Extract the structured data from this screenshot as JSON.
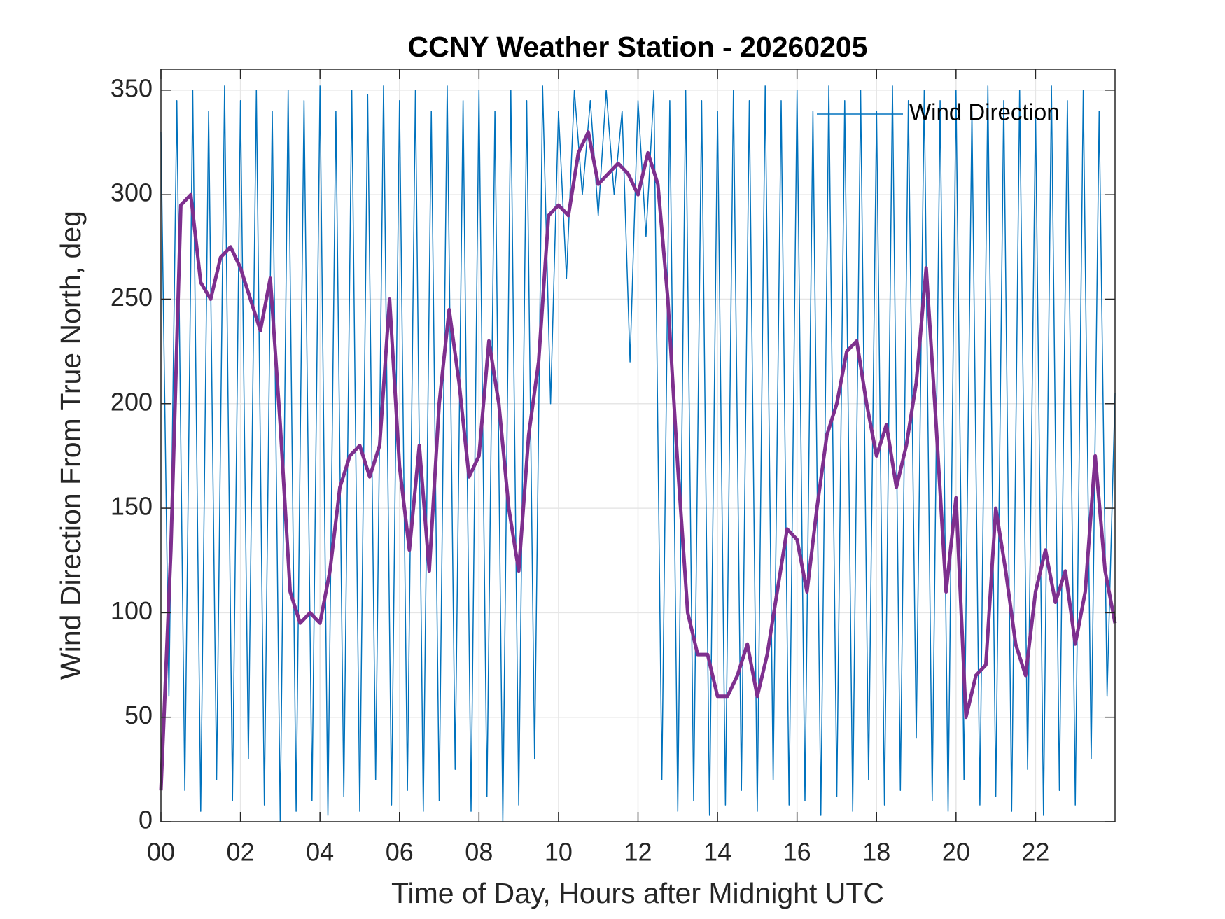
{
  "chart_data": {
    "type": "line",
    "title": "CCNY Weather Station - 20260205",
    "xlabel": "Time of Day, Hours after Midnight UTC",
    "ylabel": "Wind Direction From True North, deg",
    "xlim": [
      0,
      24
    ],
    "ylim": [
      0,
      360
    ],
    "xticks": [
      {
        "value": 0,
        "label": "00"
      },
      {
        "value": 2,
        "label": "02"
      },
      {
        "value": 4,
        "label": "04"
      },
      {
        "value": 6,
        "label": "06"
      },
      {
        "value": 8,
        "label": "08"
      },
      10,
      12,
      14,
      16,
      18,
      20,
      22
    ],
    "yticks": [
      0,
      50,
      100,
      150,
      200,
      250,
      300,
      350
    ],
    "grid": true,
    "legend": "northeast",
    "series": [
      {
        "name": "Wind Direction",
        "color": "#0072bd",
        "width": 1.5,
        "x": [
          0,
          0.2,
          0.4,
          0.6,
          0.8,
          1,
          1.2,
          1.4,
          1.6,
          1.8,
          2,
          2.2,
          2.4,
          2.6,
          2.8,
          3,
          3.2,
          3.4,
          3.6,
          3.8,
          4,
          4.2,
          4.4,
          4.6,
          4.8,
          5,
          5.2,
          5.4,
          5.6,
          5.8,
          6,
          6.2,
          6.4,
          6.6,
          6.8,
          7,
          7.2,
          7.4,
          7.6,
          7.8,
          8,
          8.2,
          8.4,
          8.6,
          8.8,
          9,
          9.2,
          9.4,
          9.6,
          9.8,
          10,
          10.2,
          10.4,
          10.6,
          10.8,
          11,
          11.2,
          11.4,
          11.6,
          11.8,
          12,
          12.2,
          12.4,
          12.6,
          12.8,
          13,
          13.2,
          13.4,
          13.6,
          13.8,
          14,
          14.2,
          14.4,
          14.6,
          14.8,
          15,
          15.2,
          15.4,
          15.6,
          15.8,
          16,
          16.2,
          16.4,
          16.6,
          16.8,
          17,
          17.2,
          17.4,
          17.6,
          17.8,
          18,
          18.2,
          18.4,
          18.6,
          18.8,
          19,
          19.2,
          19.4,
          19.6,
          19.8,
          20,
          20.2,
          20.4,
          20.6,
          20.8,
          21,
          21.2,
          21.4,
          21.6,
          21.8,
          22,
          22.2,
          22.4,
          22.6,
          22.8,
          23,
          23.2,
          23.4,
          23.6,
          23.8,
          24
        ],
        "values": [
          330,
          60,
          345,
          15,
          350,
          5,
          340,
          20,
          352,
          10,
          345,
          30,
          350,
          8,
          340,
          0,
          350,
          5,
          345,
          10,
          352,
          3,
          340,
          12,
          350,
          5,
          348,
          20,
          352,
          8,
          345,
          15,
          350,
          5,
          340,
          10,
          352,
          25,
          345,
          5,
          350,
          12,
          340,
          0,
          350,
          8,
          345,
          30,
          352,
          200,
          340,
          260,
          350,
          300,
          345,
          290,
          350,
          300,
          340,
          220,
          345,
          280,
          350,
          20,
          345,
          5,
          350,
          10,
          345,
          3,
          340,
          8,
          350,
          15,
          345,
          5,
          352,
          20,
          345,
          8,
          350,
          10,
          340,
          3,
          352,
          12,
          345,
          5,
          350,
          20,
          340,
          8,
          352,
          15,
          345,
          40,
          350,
          10,
          345,
          5,
          350,
          20,
          340,
          8,
          352,
          12,
          345,
          5,
          350,
          25,
          340,
          3,
          352,
          15,
          345,
          8,
          350,
          30,
          340,
          60,
          205
        ]
      },
      {
        "color": "#7e2f8e",
        "width": 5,
        "x": [
          0,
          0.25,
          0.5,
          0.75,
          1,
          1.25,
          1.5,
          1.75,
          2,
          2.25,
          2.5,
          2.75,
          3,
          3.25,
          3.5,
          3.75,
          4,
          4.25,
          4.5,
          4.75,
          5,
          5.25,
          5.5,
          5.75,
          6,
          6.25,
          6.5,
          6.75,
          7,
          7.25,
          7.5,
          7.75,
          8,
          8.25,
          8.5,
          8.75,
          9,
          9.25,
          9.5,
          9.75,
          10,
          10.25,
          10.5,
          10.75,
          11,
          11.25,
          11.5,
          11.75,
          12,
          12.25,
          12.5,
          12.75,
          13,
          13.25,
          13.5,
          13.75,
          14,
          14.25,
          14.5,
          14.75,
          15,
          15.25,
          15.5,
          15.75,
          16,
          16.25,
          16.5,
          16.75,
          17,
          17.25,
          17.5,
          17.75,
          18,
          18.25,
          18.5,
          18.75,
          19,
          19.25,
          19.5,
          19.75,
          20,
          20.25,
          20.5,
          20.75,
          21,
          21.25,
          21.5,
          21.75,
          22,
          22.25,
          22.5,
          22.75,
          23,
          23.25,
          23.5,
          23.75,
          24
        ],
        "values": [
          15,
          130,
          295,
          300,
          258,
          250,
          270,
          275,
          265,
          250,
          235,
          260,
          190,
          110,
          95,
          100,
          95,
          120,
          160,
          175,
          180,
          165,
          180,
          250,
          170,
          130,
          180,
          120,
          200,
          245,
          210,
          165,
          175,
          230,
          200,
          150,
          120,
          185,
          220,
          290,
          295,
          290,
          320,
          330,
          305,
          310,
          315,
          310,
          300,
          320,
          305,
          250,
          170,
          100,
          80,
          80,
          60,
          60,
          70,
          85,
          60,
          80,
          110,
          140,
          135,
          110,
          150,
          185,
          200,
          225,
          230,
          200,
          175,
          190,
          160,
          180,
          210,
          265,
          190,
          110,
          155,
          50,
          70,
          75,
          150,
          120,
          85,
          70,
          110,
          130,
          105,
          120,
          85,
          110,
          175,
          120,
          95
        ]
      }
    ]
  }
}
